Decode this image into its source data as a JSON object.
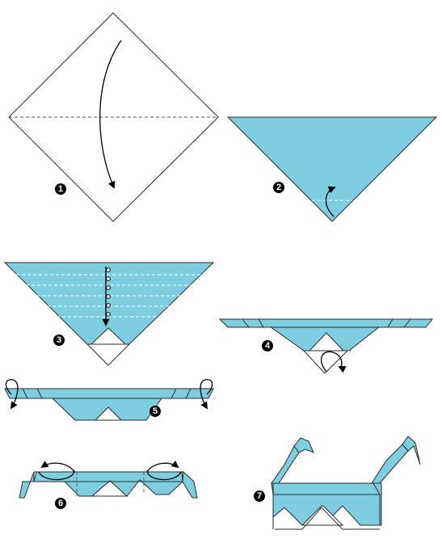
{
  "colors": {
    "paper_blue": "#7ecde0",
    "paper_blue_dark": "#5fb9d0",
    "paper_white": "#ffffff",
    "line": "#2b2b2b"
  },
  "steps": [
    {
      "number": "1",
      "icon": "fold-down-arrow-icon"
    },
    {
      "number": "2",
      "icon": "fold-up-arrow-icon"
    },
    {
      "number": "3",
      "icon": "pleat-fold-icon"
    },
    {
      "number": "4",
      "icon": "fold-up-arrow-icon"
    },
    {
      "number": "5",
      "icon": "fold-back-arrow-icon"
    },
    {
      "number": "6",
      "icon": "fold-over-arrow-icon"
    },
    {
      "number": "7",
      "icon": "finished-glasses-icon"
    }
  ]
}
